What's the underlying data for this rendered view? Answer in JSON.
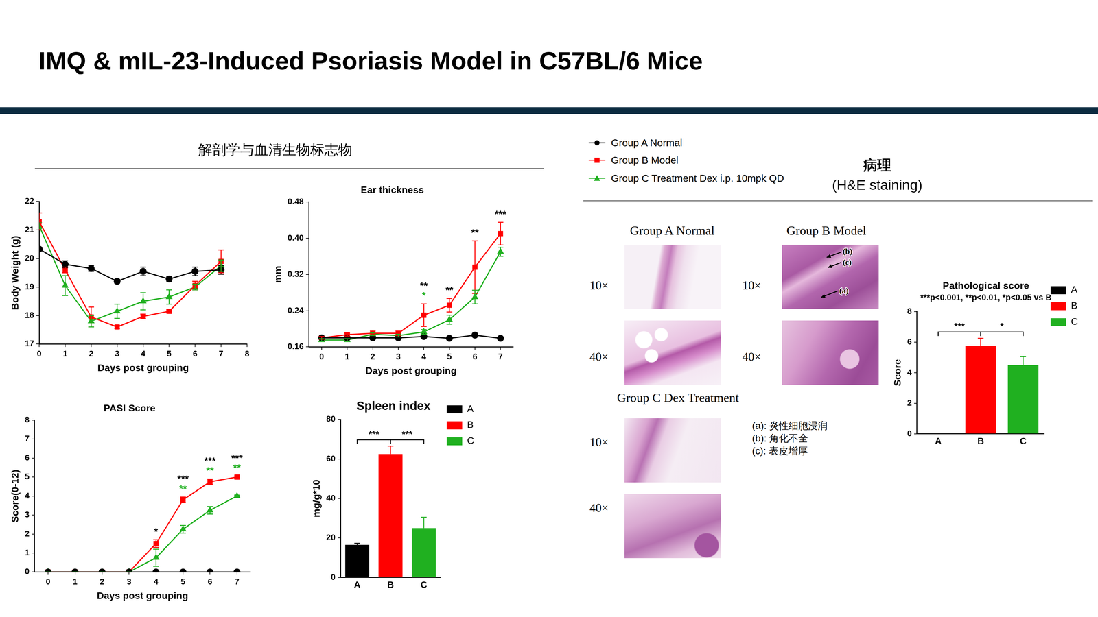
{
  "title": "IMQ & mIL-23-Induced Psoriasis Model in C57BL/6 Mice",
  "left_heading": "解剖学与血清生物标志物",
  "pathology": {
    "title": "病理",
    "subtitle": "(H&E staining)",
    "groups": [
      {
        "label": "Group A Normal",
        "magnifications": [
          "10×",
          "40×"
        ]
      },
      {
        "label": "Group B Model",
        "magnifications": [
          "10×",
          "40×"
        ],
        "arrows": [
          "(b)",
          "(c)",
          "(a)"
        ]
      },
      {
        "label": "Group C Dex Treatment",
        "magnifications": [
          "10×",
          "40×"
        ]
      }
    ],
    "notes": [
      "(a): 炎性细胞浸润",
      "(b): 角化不全",
      "(c): 表皮增厚"
    ]
  },
  "chart_data": [
    {
      "type": "line",
      "x_label": "Days post grouping",
      "y_label": "Body Weight (g)",
      "x": [
        0,
        1,
        2,
        3,
        4,
        5,
        6,
        7
      ],
      "xlim": [
        0,
        8
      ],
      "xticks": [
        0,
        1,
        2,
        3,
        4,
        5,
        6,
        7,
        8
      ],
      "ylim": [
        17,
        22
      ],
      "yticks": [
        17,
        18,
        19,
        20,
        21,
        22
      ],
      "grid": false,
      "series": [
        {
          "name": "Group A Normal",
          "color": "#000000",
          "marker": "circle",
          "values": [
            20.33,
            19.8,
            19.65,
            19.2,
            19.55,
            19.28,
            19.55,
            19.6
          ],
          "errors": [
            0.05,
            0.12,
            0.1,
            0.07,
            0.15,
            0.1,
            0.15,
            0.15
          ]
        },
        {
          "name": "Group B Model",
          "color": "#ff0000",
          "marker": "square",
          "values": [
            21.3,
            19.6,
            17.95,
            17.6,
            17.97,
            18.15,
            19.05,
            19.9
          ],
          "errors": [
            0.3,
            0.1,
            0.35,
            0.05,
            0.08,
            0.05,
            0.15,
            0.4
          ]
        },
        {
          "name": "Group C Treatment Dex i.p. 10mpk QD",
          "color": "#20b020",
          "marker": "triangle",
          "values": [
            21.15,
            19.05,
            17.8,
            18.15,
            18.5,
            18.65,
            19.0,
            19.75
          ],
          "errors": [
            0.1,
            0.35,
            0.2,
            0.25,
            0.3,
            0.25,
            0.1,
            0.2
          ]
        }
      ]
    },
    {
      "type": "line",
      "title": "Ear thickness",
      "x_label": "Days post grouping",
      "y_label": "mm",
      "categories": [
        "0",
        "1",
        "2",
        "3",
        "4",
        "5",
        "6",
        "7"
      ],
      "ylim": [
        0.16,
        0.48
      ],
      "yticks": [
        0.16,
        0.24,
        0.32,
        {
          "value": 0.4,
          "label": "0.40"
        },
        0.48
      ],
      "grid": false,
      "series": [
        {
          "name": "Group A Normal",
          "color": "#000000",
          "marker": "circle",
          "values": [
            0.18,
            0.18,
            0.18,
            0.18,
            0.183,
            0.179,
            0.186,
            0.179
          ],
          "errors": [
            0.003,
            0.003,
            0.003,
            0.003,
            0.003,
            0.003,
            0.004,
            0.003
          ]
        },
        {
          "name": "Group B Model",
          "color": "#ff0000",
          "marker": "square",
          "values": [
            0.18,
            0.187,
            0.19,
            0.19,
            0.23,
            0.252,
            0.336,
            0.41
          ],
          "errors": [
            0.003,
            0.003,
            0.005,
            0.005,
            0.025,
            0.015,
            0.058,
            0.025
          ]
        },
        {
          "name": "Group C Treatment Dex i.p. 10mpk QD",
          "color": "#20b020",
          "marker": "triangle",
          "values": [
            0.175,
            0.175,
            0.188,
            0.185,
            0.193,
            0.22,
            0.27,
            0.37
          ],
          "errors": [
            0.003,
            0.003,
            0.003,
            0.003,
            0.005,
            0.01,
            0.015,
            0.01
          ]
        }
      ],
      "annotations": [
        {
          "x": "4",
          "text": "**",
          "color": "#000000"
        },
        {
          "x": "4",
          "text": "*",
          "color": "#20b020"
        },
        {
          "x": "5",
          "text": "**",
          "color": "#000000"
        },
        {
          "x": "6",
          "text": "**",
          "color": "#000000"
        },
        {
          "x": "7",
          "text": "***",
          "color": "#000000"
        }
      ]
    },
    {
      "type": "line",
      "title": "PASI Score",
      "x_label": "Days post grouping",
      "y_label": "Score(0-12)",
      "categories": [
        "0",
        "1",
        "2",
        "3",
        "4",
        "5",
        "6",
        "7"
      ],
      "ylim": [
        0,
        8
      ],
      "yticks": [
        0,
        1,
        2,
        3,
        4,
        5,
        6,
        7,
        8
      ],
      "grid": false,
      "series": [
        {
          "name": "Group A Normal",
          "color": "#000000",
          "marker": "circle",
          "values": [
            0,
            0,
            0,
            0,
            0,
            0,
            0,
            0
          ],
          "errors": [
            0,
            0,
            0,
            0,
            0,
            0,
            0,
            0
          ]
        },
        {
          "name": "Group B Model",
          "color": "#ff0000",
          "marker": "square",
          "values": [
            0,
            0,
            0,
            0,
            1.5,
            3.8,
            4.75,
            5.0
          ],
          "errors": [
            0,
            0,
            0,
            0,
            0.2,
            0.15,
            0.15,
            0.05
          ]
        },
        {
          "name": "Group C Treatment Dex i.p. 10mpk QD",
          "color": "#20b020",
          "marker": "triangle",
          "values": [
            0,
            0,
            0,
            0,
            0.75,
            2.25,
            3.25,
            4.0
          ],
          "errors": [
            0,
            0,
            0,
            0,
            0.45,
            0.2,
            0.2,
            0.05
          ]
        }
      ],
      "annotations": [
        {
          "x": "4",
          "text": "*",
          "color": "#000000"
        },
        {
          "x": "5",
          "text": "***",
          "color": "#000000"
        },
        {
          "x": "5",
          "text": "**",
          "color": "#20b020"
        },
        {
          "x": "6",
          "text": "***",
          "color": "#000000"
        },
        {
          "x": "6",
          "text": "**",
          "color": "#20b020"
        },
        {
          "x": "7",
          "text": "***",
          "color": "#000000"
        },
        {
          "x": "7",
          "text": "**",
          "color": "#20b020"
        }
      ]
    },
    {
      "type": "bar",
      "title": "Spleen index",
      "y_label": "mg/g*10",
      "categories": [
        "A",
        "B",
        "C"
      ],
      "values": [
        16.5,
        62.5,
        25
      ],
      "errors": [
        0.8,
        4,
        5.5
      ],
      "colors": [
        "#000000",
        "#ff0000",
        "#20b020"
      ],
      "ylim": [
        0,
        80
      ],
      "yticks": [
        0,
        20,
        40,
        60,
        80
      ],
      "grid": false,
      "legend": "right",
      "comparisons": [
        {
          "from": "A",
          "to": "B",
          "text": "***"
        },
        {
          "from": "B",
          "to": "C",
          "text": "***"
        }
      ]
    },
    {
      "type": "bar",
      "title": "Pathological score",
      "subtitle": "***p<0.001, **p<0.01, *p<0.05 vs B",
      "y_label": "Score",
      "categories": [
        "A",
        "B",
        "C"
      ],
      "values": [
        0,
        5.75,
        4.5
      ],
      "errors": [
        0,
        0.5,
        0.55
      ],
      "colors": [
        "#000000",
        "#ff0000",
        "#20b020"
      ],
      "ylim": [
        0,
        8
      ],
      "yticks": [
        0,
        2,
        4,
        6,
        8
      ],
      "grid": false,
      "legend": "right",
      "comparisons": [
        {
          "from": "A",
          "to": "B",
          "text": "***"
        },
        {
          "from": "B",
          "to": "C",
          "text": "*"
        }
      ]
    }
  ]
}
